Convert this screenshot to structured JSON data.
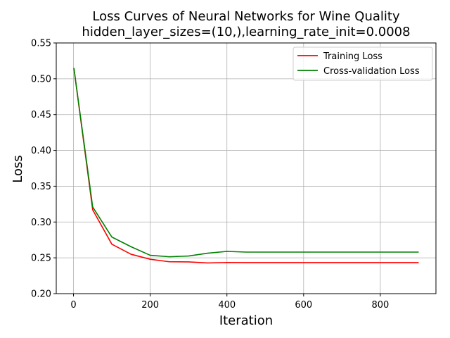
{
  "chart_data": {
    "type": "line",
    "title": "Loss Curves of Neural Networks for Wine Quality",
    "subtitle": "hidden_layer_sizes=(10,),learning_rate_init=0.0008",
    "xlabel": "Iteration",
    "ylabel": "Loss",
    "xlim": [
      -45,
      945
    ],
    "ylim": [
      0.2,
      0.55
    ],
    "xticks": [
      0,
      200,
      400,
      600,
      800
    ],
    "yticks": [
      0.2,
      0.25,
      0.3,
      0.35,
      0.4,
      0.45,
      0.5,
      0.55
    ],
    "grid": true,
    "legend_position": "top-right",
    "x": [
      1,
      50,
      100,
      150,
      200,
      250,
      300,
      350,
      400,
      450,
      500,
      550,
      600,
      650,
      700,
      750,
      800,
      850,
      900
    ],
    "series": [
      {
        "name": "Training Loss",
        "color": "#ff0000",
        "values": [
          0.515,
          0.317,
          0.269,
          0.255,
          0.248,
          0.2445,
          0.2443,
          0.2428,
          0.2435,
          0.2433,
          0.2433,
          0.2433,
          0.2433,
          0.2433,
          0.2433,
          0.2433,
          0.2433,
          0.2433,
          0.2433
        ]
      },
      {
        "name": "Cross-validation Loss",
        "color": "#008000",
        "values": [
          0.515,
          0.321,
          0.279,
          0.2655,
          0.2535,
          0.2515,
          0.2525,
          0.2565,
          0.259,
          0.258,
          0.258,
          0.258,
          0.258,
          0.258,
          0.258,
          0.258,
          0.258,
          0.258,
          0.258
        ]
      }
    ]
  }
}
